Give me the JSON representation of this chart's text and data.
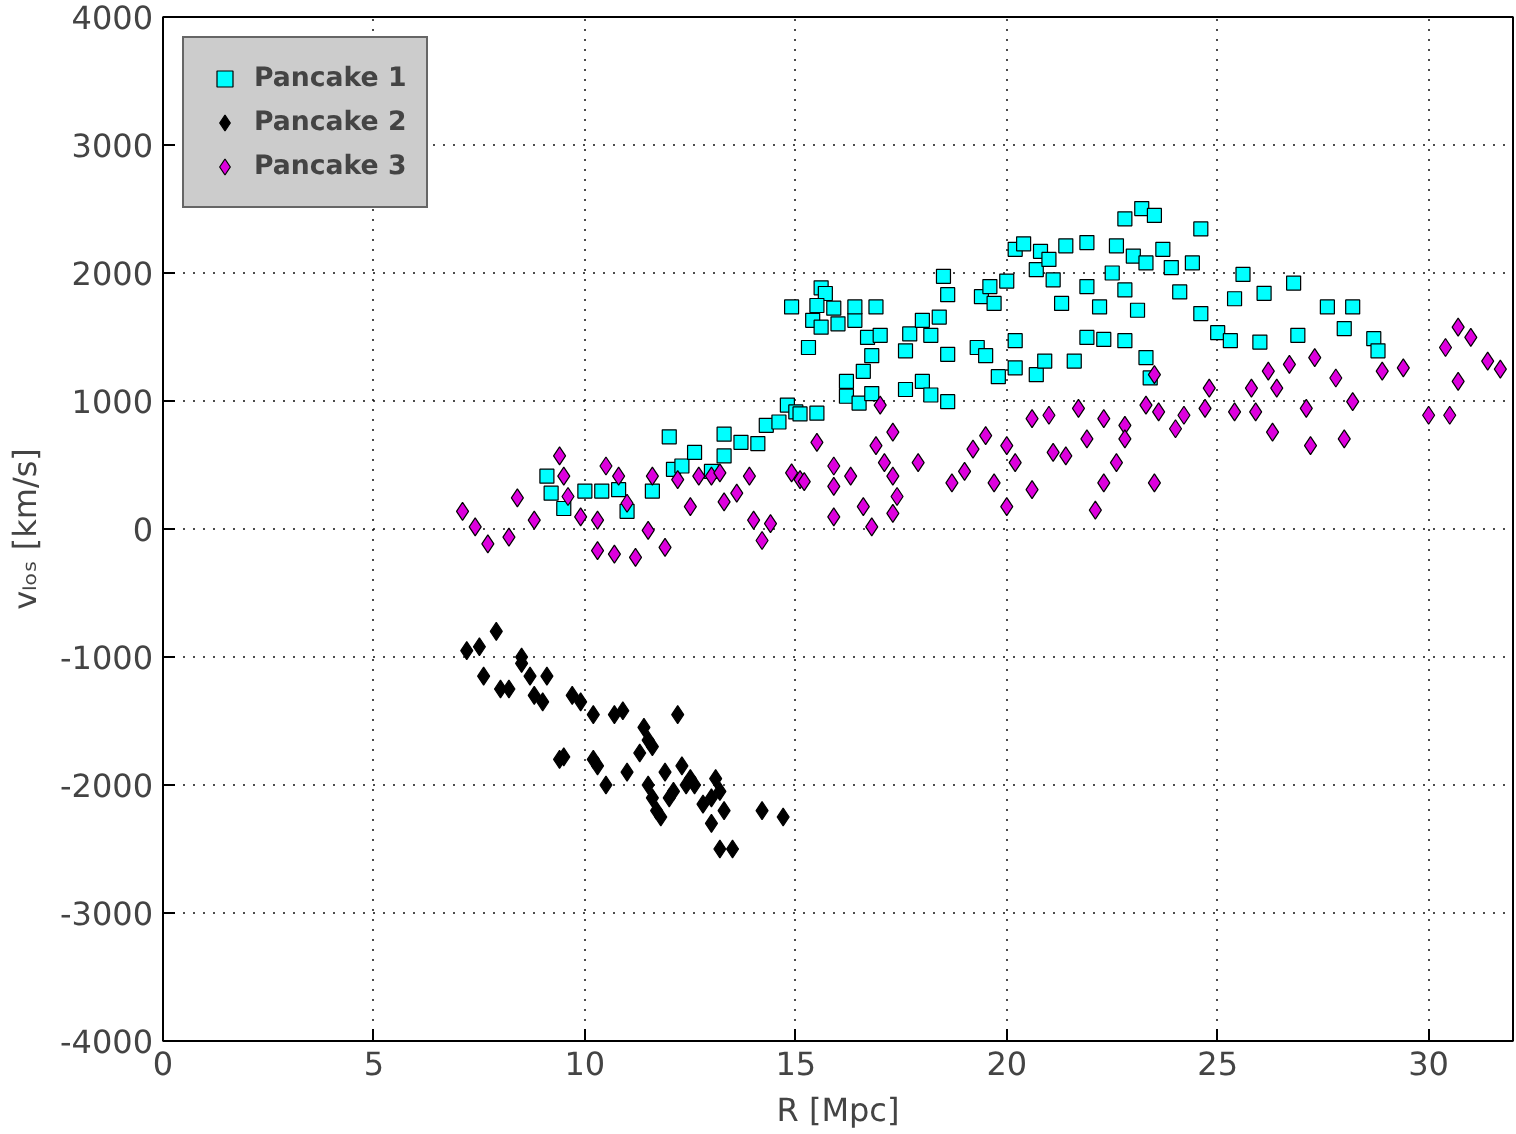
{
  "chart_data": {
    "type": "scatter",
    "xlabel": "R [Mpc]",
    "ylabel": "vₗₒₛ [km/s]",
    "xlim": [
      0,
      32
    ],
    "ylim": [
      -4000,
      4000
    ],
    "xticks": [
      0,
      5,
      10,
      15,
      20,
      25,
      30
    ],
    "yticks": [
      -4000,
      -3000,
      -2000,
      -1000,
      0,
      1000,
      2000,
      3000,
      4000
    ],
    "grid": true,
    "legend": "top left",
    "series": [
      {
        "name": "Pancake 1",
        "color": "#00ffff",
        "marker": "square",
        "x": [
          9.1,
          9.2,
          9.5,
          10.0,
          10.4,
          10.8,
          11.0,
          11.6,
          12.0,
          12.1,
          12.3,
          12.6,
          13.0,
          13.3,
          13.3,
          13.7,
          14.1,
          14.3,
          14.6,
          14.8,
          15.0,
          15.1,
          15.5,
          14.9,
          15.6,
          15.7,
          15.5,
          15.9,
          15.4,
          15.6,
          16.0,
          16.4,
          16.4,
          16.9,
          16.7,
          17.0,
          16.8,
          15.3,
          16.6,
          16.2,
          16.5,
          16.8,
          17.6,
          17.7,
          18.0,
          18.4,
          18.5,
          18.6,
          18.2,
          18.6,
          18.0,
          17.6,
          18.2,
          18.6,
          19.3,
          19.5,
          19.4,
          19.6,
          19.7,
          20.0,
          20.2,
          20.4,
          20.8,
          20.7,
          21.0,
          21.1,
          21.3,
          21.4,
          21.9,
          21.9,
          22.2,
          22.5,
          22.6,
          22.8,
          23.2,
          23.5,
          23.0,
          23.3,
          22.8,
          23.1,
          23.7,
          23.9,
          24.4,
          24.6,
          24.1,
          24.6,
          25.0,
          25.3,
          25.6,
          25.4,
          26.1,
          26.0,
          26.8,
          26.9,
          27.6,
          28.2,
          28.0,
          28.7,
          28.8,
          20.2,
          20.2,
          20.7,
          20.9,
          21.6,
          21.9,
          22.3,
          22.8,
          23.3,
          23.4,
          19.8,
          16.2
        ],
        "values": [
          413,
          280,
          160,
          296,
          296,
          307,
          138,
          296,
          720,
          466,
          492,
          598,
          450,
          741,
          571,
          677,
          667,
          810,
          836,
          968,
          915,
          899,
          905,
          1735,
          1884,
          1840,
          1746,
          1725,
          1630,
          1577,
          1603,
          1630,
          1735,
          1735,
          1497,
          1513,
          1354,
          1418,
          1232,
          1037,
          984,
          1058,
          1392,
          1524,
          1630,
          1656,
          1974,
          1831,
          1513,
          1365,
          1153,
          1090,
          1047,
          995,
          1418,
          1354,
          1815,
          1894,
          1762,
          1937,
          2185,
          2228,
          2169,
          2026,
          2106,
          1947,
          1762,
          2212,
          2238,
          1894,
          1735,
          2000,
          2212,
          2423,
          2503,
          2450,
          2132,
          2079,
          1868,
          1709,
          2185,
          2042,
          2079,
          2344,
          1852,
          1683,
          1534,
          1471,
          1989,
          1799,
          1841,
          1460,
          1921,
          1513,
          1735,
          1735,
          1566,
          1487,
          1392,
          1471,
          1259,
          1206,
          1312,
          1312,
          1497,
          1481,
          1471,
          1339,
          1180,
          1190,
          1153
        ]
      },
      {
        "name": "Pancake 2",
        "color": "#000000",
        "marker": "diamond",
        "x": [
          7.2,
          7.5,
          7.9,
          7.6,
          8.0,
          8.2,
          8.5,
          8.5,
          8.7,
          8.8,
          9.0,
          9.1,
          9.4,
          9.5,
          9.7,
          9.9,
          10.2,
          10.2,
          10.3,
          10.5,
          10.7,
          10.9,
          11.0,
          11.3,
          11.4,
          11.5,
          11.5,
          11.6,
          11.7,
          11.8,
          11.9,
          12.0,
          12.2,
          12.3,
          12.4,
          12.5,
          12.6,
          12.8,
          13.0,
          13.1,
          13.2,
          13.3,
          13.2,
          13.5,
          14.2,
          14.7,
          13.0,
          12.1,
          11.6
        ],
        "values": [
          -950,
          -920,
          -800,
          -1150,
          -1250,
          -1250,
          -1000,
          -1050,
          -1150,
          -1300,
          -1350,
          -1150,
          -1800,
          -1780,
          -1300,
          -1350,
          -1450,
          -1800,
          -1850,
          -2000,
          -1450,
          -1420,
          -1900,
          -1750,
          -1550,
          -1650,
          -2000,
          -2100,
          -2200,
          -2250,
          -1900,
          -2100,
          -1450,
          -1850,
          -2000,
          -1950,
          -2000,
          -2150,
          -2100,
          -1950,
          -2050,
          -2200,
          -2500,
          -2500,
          -2200,
          -2250,
          -2300,
          -2050,
          -1700
        ]
      },
      {
        "name": "Pancake 3",
        "color": "#dd00dd",
        "marker": "diamond",
        "x": [
          7.1,
          7.4,
          7.7,
          8.2,
          8.4,
          8.8,
          9.4,
          9.5,
          9.6,
          9.9,
          10.3,
          10.3,
          10.5,
          10.7,
          10.8,
          11.0,
          11.2,
          11.5,
          11.6,
          11.9,
          12.2,
          12.5,
          12.7,
          13.0,
          13.2,
          13.3,
          13.6,
          13.9,
          14.0,
          14.2,
          14.4,
          14.9,
          15.1,
          15.2,
          15.5,
          15.9,
          15.9,
          15.9,
          16.3,
          16.6,
          16.8,
          16.9,
          17.0,
          17.1,
          17.3,
          17.3,
          17.4,
          17.3,
          17.9,
          18.7,
          19.0,
          19.2,
          19.5,
          19.7,
          20.0,
          20.0,
          20.2,
          20.6,
          20.6,
          21.0,
          21.1,
          21.4,
          21.7,
          21.9,
          22.1,
          22.3,
          22.3,
          22.6,
          22.8,
          22.8,
          23.3,
          23.5,
          23.5,
          23.6,
          24.0,
          24.2,
          24.7,
          24.8,
          25.4,
          25.8,
          25.9,
          26.2,
          26.3,
          26.4,
          26.7,
          27.1,
          27.2,
          27.3,
          27.8,
          28.0,
          28.2,
          28.9,
          29.4,
          30.0,
          30.5,
          30.4,
          30.7,
          30.7,
          31.0,
          31.4,
          31.7
        ],
        "values": [
          138,
          16,
          -116,
          -63,
          243,
          69,
          571,
          413,
          254,
          95,
          69,
          -169,
          492,
          -196,
          413,
          201,
          -222,
          -11,
          413,
          -143,
          386,
          175,
          413,
          413,
          439,
          212,
          280,
          413,
          69,
          -90,
          42,
          439,
          386,
          370,
          677,
          492,
          333,
          95,
          413,
          175,
          16,
          651,
          968,
          519,
          413,
          757,
          254,
          122,
          519,
          360,
          450,
          624,
          730,
          360,
          175,
          651,
          519,
          307,
          862,
          889,
          598,
          571,
          942,
          704,
          148,
          360,
          862,
          519,
          810,
          704,
          968,
          1206,
          360,
          915,
          783,
          889,
          942,
          1101,
          915,
          1101,
          915,
          1233,
          757,
          1101,
          1286,
          942,
          651,
          1339,
          1180,
          704,
          995,
          1233,
          1259,
          889,
          889,
          1418,
          1577,
          1153,
          1497,
          1312,
          1249
        ]
      }
    ]
  }
}
